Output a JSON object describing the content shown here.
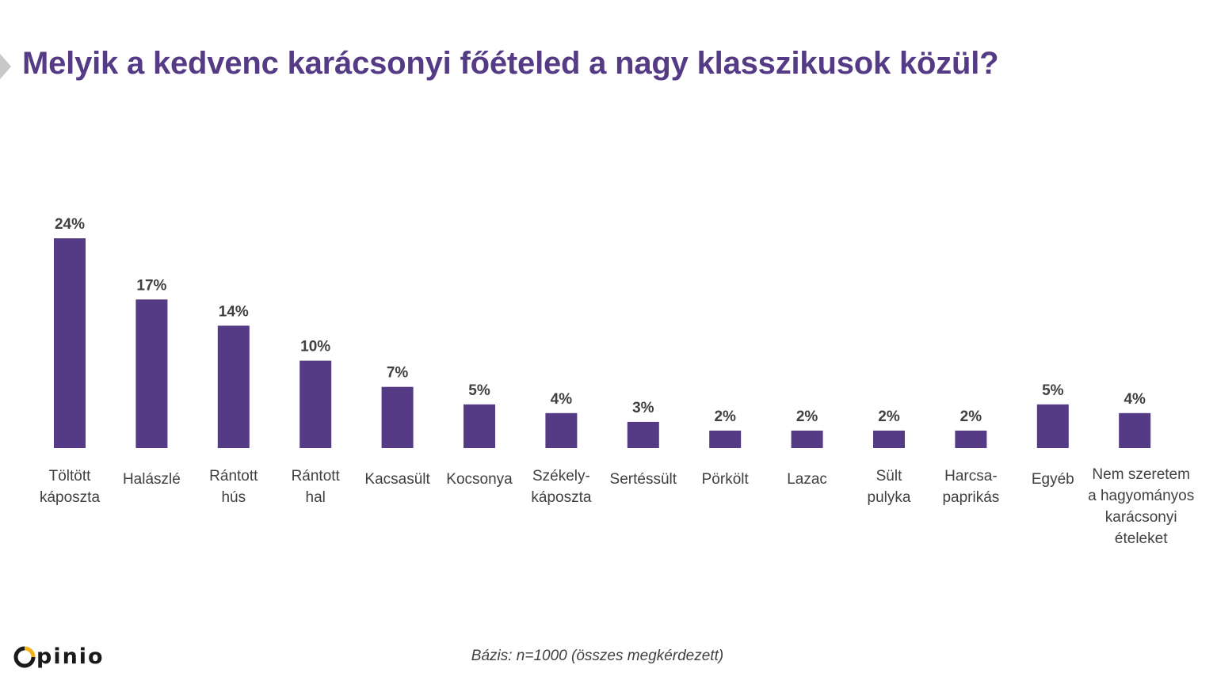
{
  "title": "Melyik a kedvenc karácsonyi főételed a nagy klasszikusok közül?",
  "footer": {
    "base_note": "Bázis: n=1000 (összes megkérdezett)",
    "logo_text": "pinio"
  },
  "colors": {
    "bar": "#553a86",
    "title": "#553a86",
    "logo_accent": "#f2b318"
  },
  "chart_data": {
    "type": "bar",
    "categories": [
      [
        "Töltött",
        "káposzta"
      ],
      [
        "Halászlé"
      ],
      [
        "Rántott",
        "hús"
      ],
      [
        "Rántott",
        "hal"
      ],
      [
        "Kacsasült"
      ],
      [
        "Kocsonya"
      ],
      [
        "Székely-",
        "káposzta"
      ],
      [
        "Sertéssült"
      ],
      [
        "Pörkölt"
      ],
      [
        "Lazac"
      ],
      [
        "Sült",
        "pulyka"
      ],
      [
        "Harcsa-",
        "paprikás"
      ],
      [
        "Egyéb"
      ],
      [
        "Nem szeretem",
        "a hagyományos",
        "karácsonyi",
        "ételeket"
      ]
    ],
    "values": [
      24,
      17,
      14,
      10,
      7,
      5,
      4,
      3,
      2,
      2,
      2,
      2,
      5,
      4
    ],
    "value_labels": [
      "24%",
      "17%",
      "14%",
      "10%",
      "7%",
      "5%",
      "4%",
      "3%",
      "2%",
      "2%",
      "2%",
      "2%",
      "5%",
      "4%"
    ],
    "ylabel": "",
    "xlabel": "",
    "grid": false,
    "legend": "none"
  }
}
